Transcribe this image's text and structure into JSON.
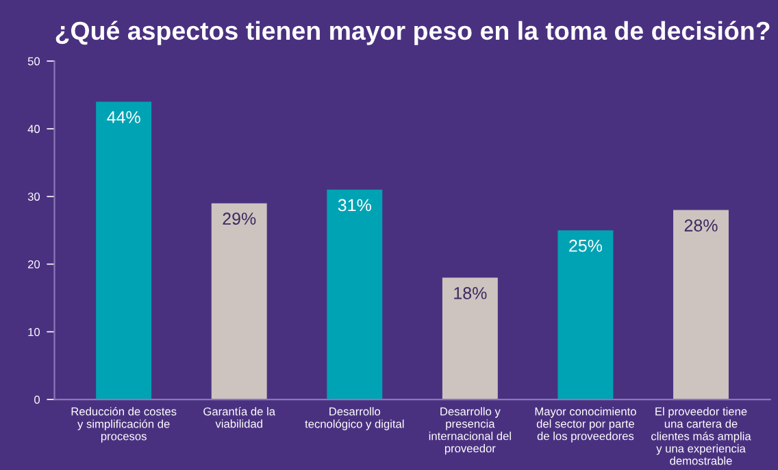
{
  "chart_data": {
    "type": "bar",
    "title": "¿Qué aspectos tienen mayor peso en la toma de decisión?",
    "categories": [
      "Reducción de costes\ny simplificación de\nprocesos",
      "Garantía de la\nviabilidad",
      "Desarrollo\ntecnológico y digital",
      "Desarrollo y\npresencia\ninternacional del\nproveedor",
      "Mayor conocimiento\ndel sector por parte\nde los proveedores",
      "El proveedor tiene\nuna cartera de\nclientes más amplia\ny una experiencia\ndemostrable"
    ],
    "values": [
      44,
      29,
      31,
      18,
      25,
      28
    ],
    "colors": [
      "#00a3b4",
      "#cdc4bf",
      "#00a3b4",
      "#cdc4bf",
      "#00a3b4",
      "#cdc4bf"
    ],
    "value_labels": [
      "44%",
      "29%",
      "31%",
      "18%",
      "25%",
      "28%"
    ],
    "ylim": [
      0,
      50
    ],
    "yticks": [
      0,
      10,
      20,
      30,
      40,
      50
    ],
    "grid": false,
    "legend": false
  }
}
